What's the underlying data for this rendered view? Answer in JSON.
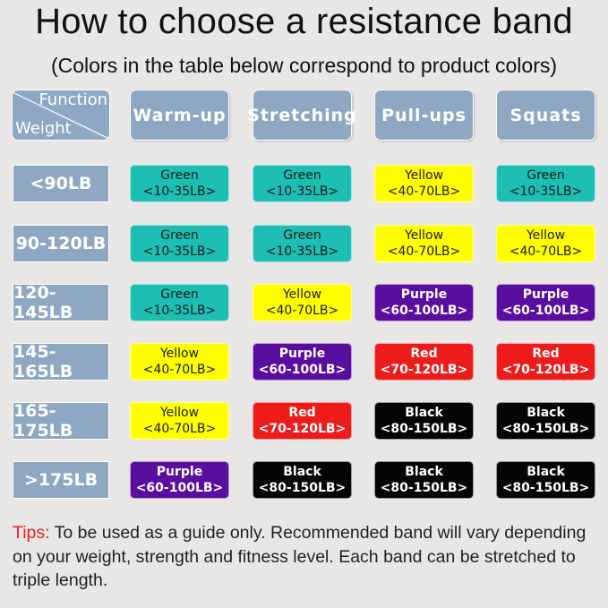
{
  "title": "How to choose a resistance band",
  "subtitle": "(Colors in the table below correspond to product colors)",
  "corner": {
    "function": "Function",
    "weight": "Weight"
  },
  "functions": [
    "Warm-up",
    "Stretching",
    "Pull-ups",
    "Squats"
  ],
  "bands": {
    "Green": {
      "range": "<10-35LB>",
      "color": "#1dbfb5",
      "text": "#1a1a1a"
    },
    "Yellow": {
      "range": "<40-70LB>",
      "color": "#ffff00",
      "text": "#1a1a1a"
    },
    "Purple": {
      "range": "<60-100LB>",
      "color": "#5a0ea0",
      "text": "#ffffff"
    },
    "Red": {
      "range": "<70-120LB>",
      "color": "#ee1b1b",
      "text": "#ffffff"
    },
    "Black": {
      "range": "<80-150LB>",
      "color": "#050505",
      "text": "#ffffff"
    }
  },
  "rows": [
    {
      "weight": "<90LB",
      "cells": [
        "Green",
        "Green",
        "Yellow",
        "Green"
      ]
    },
    {
      "weight": "90-120LB",
      "cells": [
        "Green",
        "Green",
        "Yellow",
        "Yellow"
      ]
    },
    {
      "weight": "120-145LB",
      "cells": [
        "Green",
        "Yellow",
        "Purple",
        "Purple"
      ]
    },
    {
      "weight": "145-165LB",
      "cells": [
        "Yellow",
        "Purple",
        "Red",
        "Red"
      ]
    },
    {
      "weight": "165-175LB",
      "cells": [
        "Yellow",
        "Red",
        "Black",
        "Black"
      ]
    },
    {
      "weight": ">175LB",
      "cells": [
        "Purple",
        "Black",
        "Black",
        "Black"
      ]
    }
  ],
  "tips": {
    "label": "Tips:",
    "text": " To be used as a guide only. Recommended band will vary depending on your weight, strength and fitness level. Each band can be stretched to triple length."
  }
}
